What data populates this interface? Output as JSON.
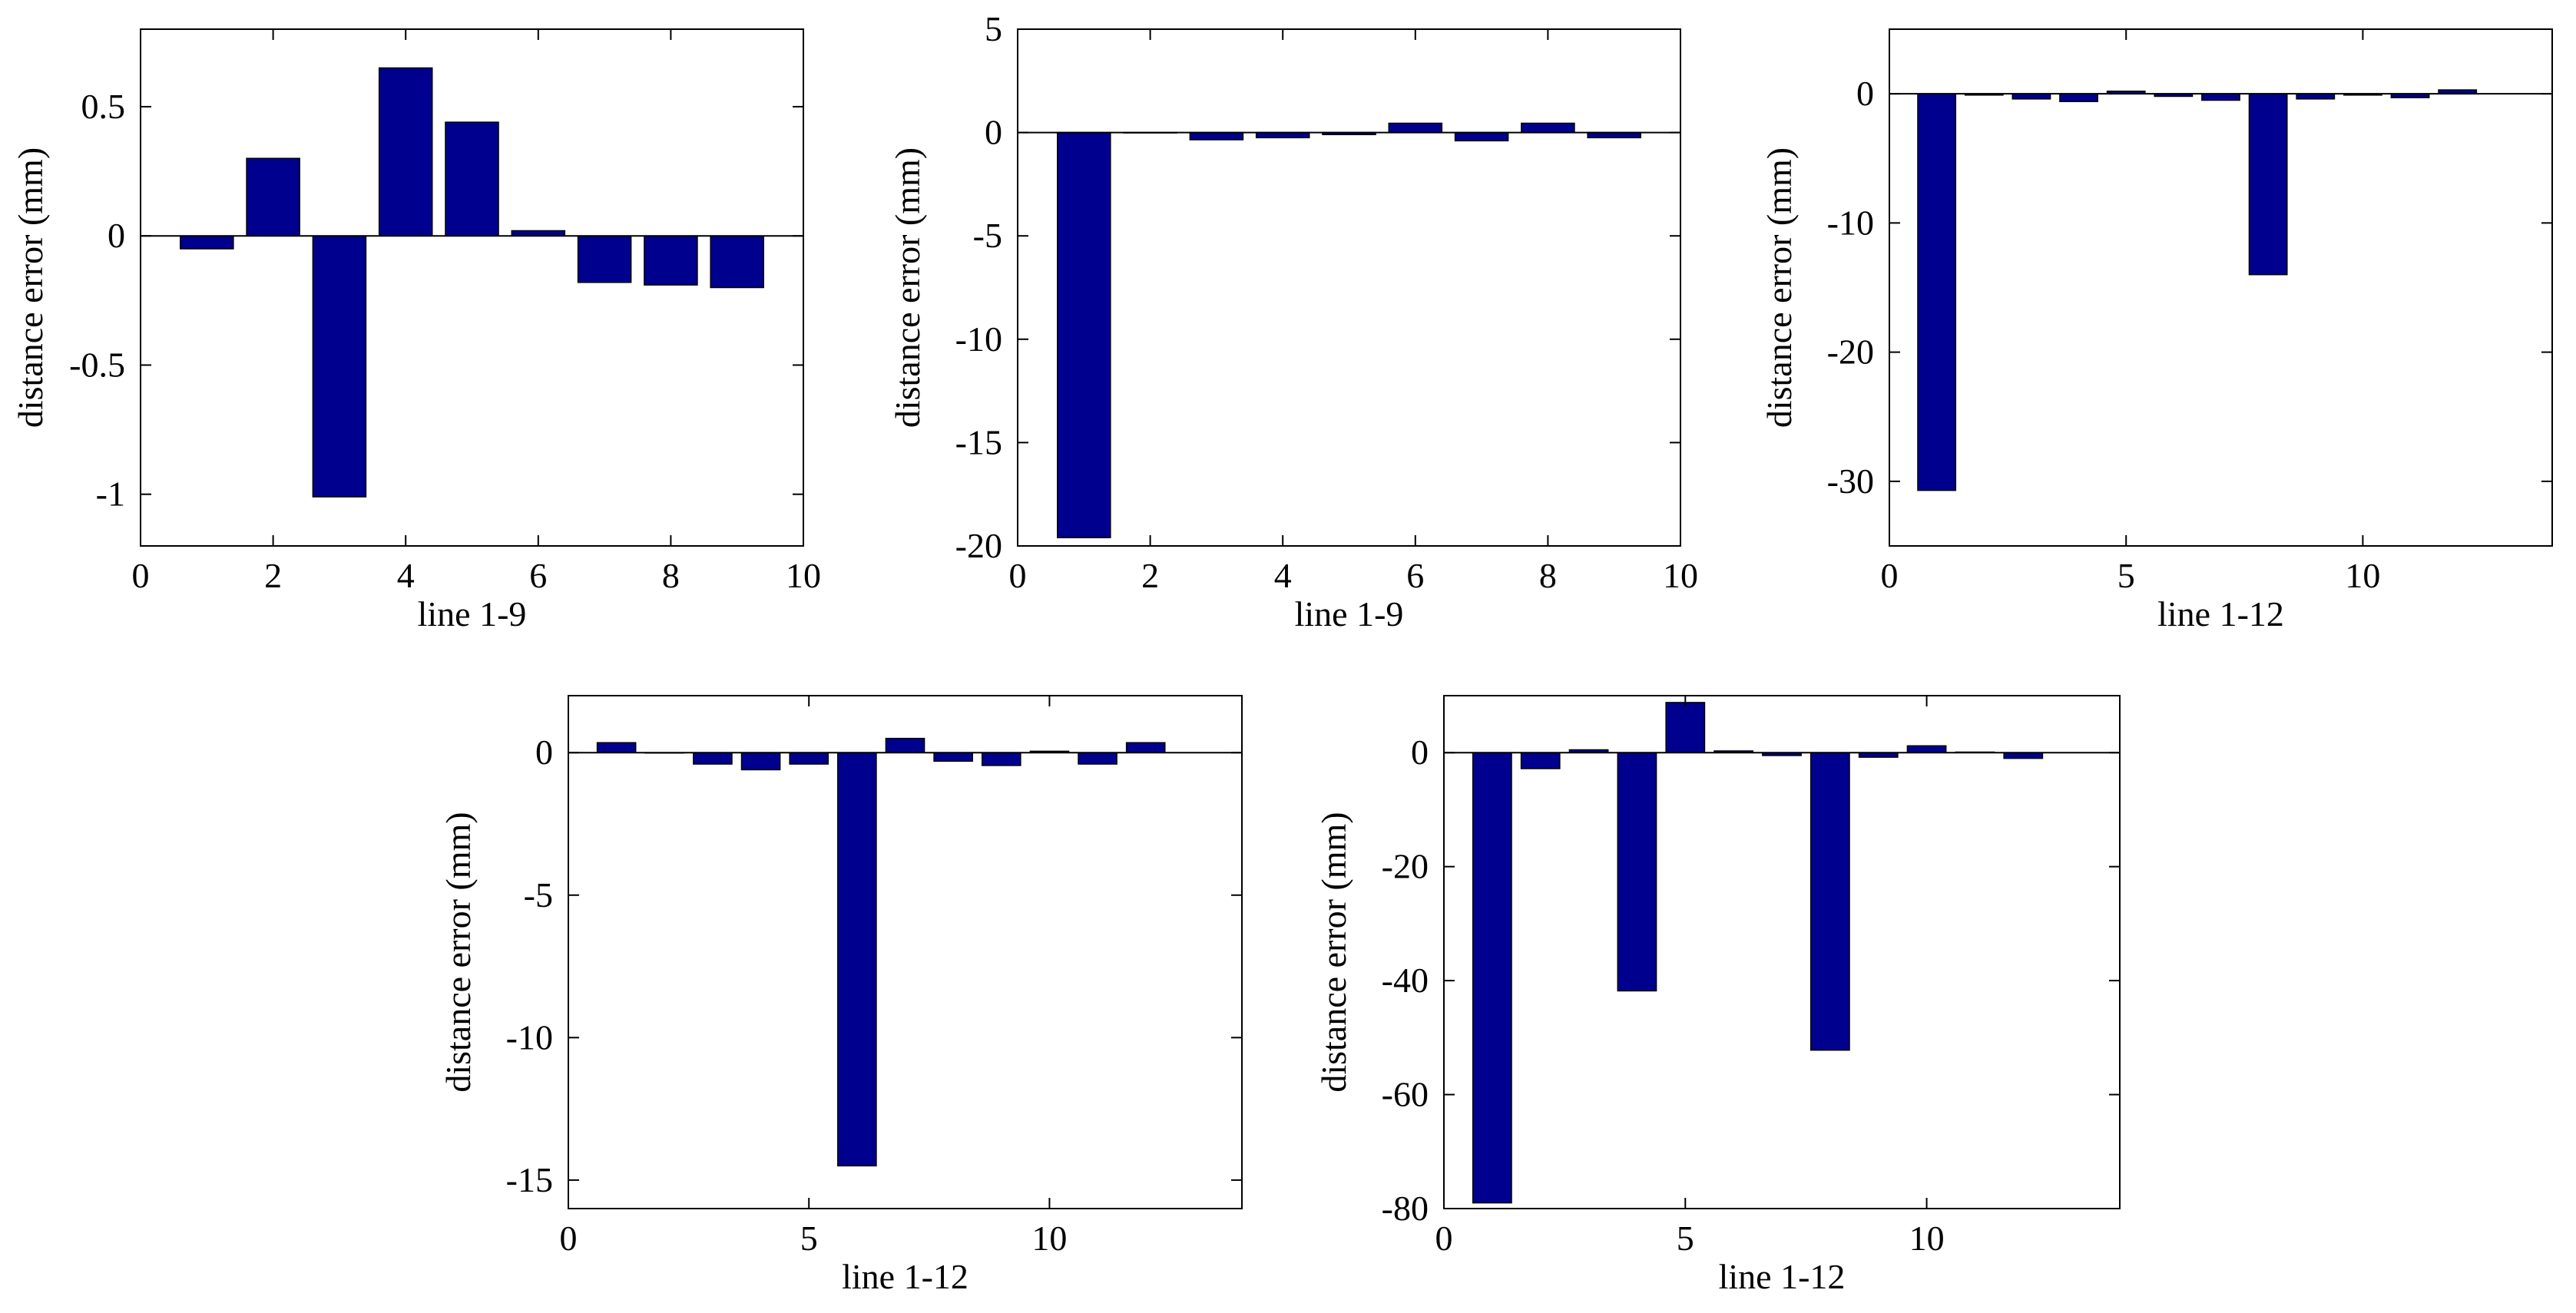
{
  "colors": {
    "bar": "#00008F",
    "axis": "#000000",
    "background": "#FFFFFF"
  },
  "chart_data": [
    {
      "type": "bar",
      "xlabel": "line 1-9",
      "ylabel": "distance error (mm)",
      "xlim": [
        0,
        10
      ],
      "ylim": [
        -1.2,
        0.8
      ],
      "xticks": [
        0,
        2,
        4,
        6,
        8,
        10
      ],
      "xtick_labels": [
        "0",
        "2",
        "4",
        "6",
        "8",
        "10"
      ],
      "yticks": [
        -1,
        -0.5,
        0,
        0.5
      ],
      "ytick_labels": [
        "-1",
        "-0.5",
        "0",
        "0.5"
      ],
      "categories": [
        1,
        2,
        3,
        4,
        5,
        6,
        7,
        8,
        9
      ],
      "values": [
        -0.05,
        0.3,
        -1.01,
        0.65,
        0.44,
        0.02,
        -0.18,
        -0.19,
        -0.2
      ],
      "grid": false
    },
    {
      "type": "bar",
      "xlabel": "line 1-9",
      "ylabel": "distance error (mm)",
      "xlim": [
        0,
        10
      ],
      "ylim": [
        -20,
        5
      ],
      "xticks": [
        0,
        2,
        4,
        6,
        8,
        10
      ],
      "xtick_labels": [
        "0",
        "2",
        "4",
        "6",
        "8",
        "10"
      ],
      "yticks": [
        -20,
        -15,
        -10,
        -5,
        0,
        5
      ],
      "ytick_labels": [
        "-20",
        "-15",
        "-10",
        "-5",
        "0",
        "5"
      ],
      "categories": [
        1,
        2,
        3,
        4,
        5,
        6,
        7,
        8,
        9
      ],
      "values": [
        -19.6,
        0,
        -0.35,
        -0.25,
        -0.1,
        0.45,
        -0.4,
        0.45,
        -0.25
      ],
      "grid": false
    },
    {
      "type": "bar",
      "xlabel": "line 1-12",
      "ylabel": "distance error (mm)",
      "xlim": [
        0,
        14
      ],
      "ylim": [
        -35,
        5
      ],
      "xticks": [
        0,
        5,
        10
      ],
      "xtick_labels": [
        "0",
        "5",
        "10"
      ],
      "yticks": [
        -30,
        -20,
        -10,
        0
      ],
      "ytick_labels": [
        "-30",
        "-20",
        "-10",
        "0"
      ],
      "categories": [
        1,
        2,
        3,
        4,
        5,
        6,
        7,
        8,
        9,
        10,
        11,
        12
      ],
      "values": [
        -30.7,
        -0.1,
        -0.4,
        -0.6,
        0.2,
        -0.2,
        -0.5,
        -14.0,
        -0.4,
        -0.1,
        -0.3,
        0.3
      ],
      "grid": false
    },
    {
      "type": "bar",
      "xlabel": "line 1-12",
      "ylabel": "distance error (mm)",
      "xlim": [
        0,
        14
      ],
      "ylim": [
        -16,
        2
      ],
      "xticks": [
        0,
        5,
        10
      ],
      "xtick_labels": [
        "0",
        "5",
        "10"
      ],
      "yticks": [
        -15,
        -10,
        -5,
        0
      ],
      "ytick_labels": [
        "-15",
        "-10",
        "-5",
        "0"
      ],
      "categories": [
        1,
        2,
        3,
        4,
        5,
        6,
        7,
        8,
        9,
        10,
        11,
        12
      ],
      "values": [
        0.35,
        0,
        -0.4,
        -0.6,
        -0.4,
        -14.5,
        0.5,
        -0.3,
        -0.45,
        0.05,
        -0.4,
        0.35
      ],
      "grid": false
    },
    {
      "type": "bar",
      "xlabel": "line 1-12",
      "ylabel": "distance error (mm)",
      "xlim": [
        0,
        14
      ],
      "ylim": [
        -80,
        10
      ],
      "xticks": [
        0,
        5,
        10
      ],
      "xtick_labels": [
        "0",
        "5",
        "10"
      ],
      "yticks": [
        -80,
        -60,
        -40,
        -20,
        0
      ],
      "ytick_labels": [
        "-80",
        "-60",
        "-40",
        "-20",
        "0"
      ],
      "categories": [
        1,
        2,
        3,
        4,
        5,
        6,
        7,
        8,
        9,
        10,
        11,
        12
      ],
      "values": [
        -79,
        -2.8,
        0.5,
        -41.8,
        8.8,
        0.3,
        -0.5,
        -52.2,
        -0.8,
        1.2,
        0.1,
        -1.0
      ],
      "grid": false
    }
  ]
}
